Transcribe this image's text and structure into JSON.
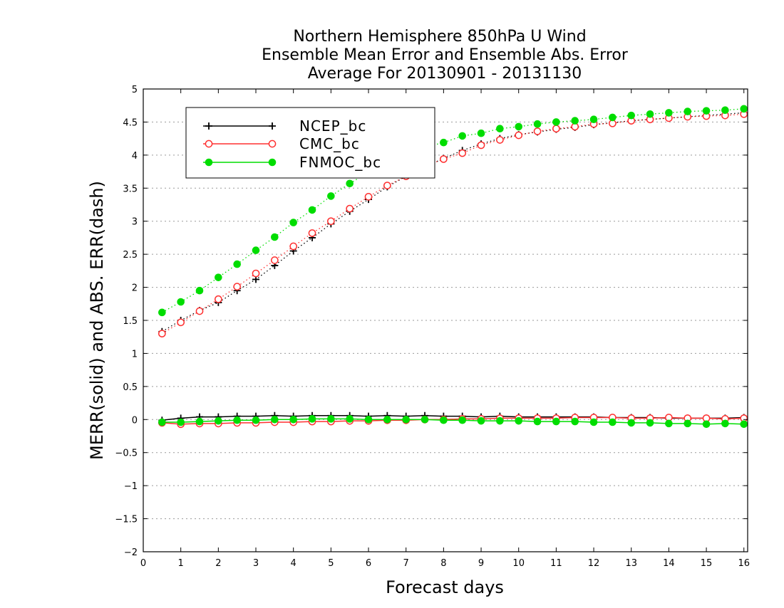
{
  "chart_data": {
    "type": "line",
    "title_lines": [
      "Northern Hemisphere 850hPa U Wind",
      "Ensemble Mean Error and Ensemble Abs. Error",
      "Average For 20130901 - 20131130"
    ],
    "xlabel": "Forecast days",
    "ylabel": "MERR(solid) and ABS. ERR(dash)",
    "xlim": [
      0,
      16.1
    ],
    "ylim": [
      -2,
      5
    ],
    "xticks": [
      0,
      1,
      2,
      3,
      4,
      5,
      6,
      7,
      8,
      9,
      10,
      11,
      12,
      13,
      14,
      15,
      16
    ],
    "yticks": [
      -2,
      -1.5,
      -1,
      -0.5,
      0,
      0.5,
      1,
      1.5,
      2,
      2.5,
      3,
      3.5,
      4,
      4.5,
      5
    ],
    "grid": "horizontal-dotted",
    "legend_position": "top-left",
    "x": [
      0.5,
      1,
      1.5,
      2,
      2.5,
      3,
      3.5,
      4,
      4.5,
      5,
      5.5,
      6,
      6.5,
      7,
      7.5,
      8,
      8.5,
      9,
      9.5,
      10,
      10.5,
      11,
      11.5,
      12,
      12.5,
      13,
      13.5,
      14,
      14.5,
      15,
      15.5,
      16
    ],
    "series": [
      {
        "name": "NCEP_bc",
        "color": "#000000",
        "marker": "plus",
        "merr": [
          -0.01,
          0.02,
          0.04,
          0.04,
          0.05,
          0.05,
          0.06,
          0.05,
          0.06,
          0.06,
          0.06,
          0.05,
          0.06,
          0.05,
          0.06,
          0.05,
          0.05,
          0.04,
          0.05,
          0.04,
          0.04,
          0.04,
          0.04,
          0.04,
          0.03,
          0.03,
          0.03,
          0.02,
          0.02,
          0.02,
          0.02,
          0.03
        ],
        "abs_err": [
          1.33,
          1.5,
          1.65,
          1.77,
          1.95,
          2.12,
          2.33,
          2.55,
          2.75,
          2.96,
          3.15,
          3.33,
          3.52,
          3.68,
          3.82,
          3.95,
          4.07,
          4.17,
          4.25,
          4.31,
          4.35,
          4.39,
          4.42,
          4.46,
          4.49,
          4.52,
          4.54,
          4.56,
          4.58,
          4.6,
          4.62,
          4.64
        ]
      },
      {
        "name": "CMC_bc",
        "color": "#ff3030",
        "marker": "open-circle",
        "merr": [
          -0.05,
          -0.07,
          -0.06,
          -0.06,
          -0.05,
          -0.05,
          -0.04,
          -0.04,
          -0.03,
          -0.03,
          -0.02,
          -0.02,
          -0.01,
          -0.01,
          0.0,
          0.0,
          0.01,
          0.01,
          0.02,
          0.02,
          0.02,
          0.02,
          0.03,
          0.03,
          0.03,
          0.02,
          0.02,
          0.03,
          0.02,
          0.02,
          0.01,
          0.02
        ],
        "abs_err": [
          1.3,
          1.47,
          1.64,
          1.82,
          2.01,
          2.21,
          2.41,
          2.62,
          2.82,
          3.0,
          3.19,
          3.37,
          3.54,
          3.68,
          3.83,
          3.94,
          4.03,
          4.15,
          4.23,
          4.3,
          4.36,
          4.4,
          4.43,
          4.47,
          4.48,
          4.52,
          4.54,
          4.56,
          4.58,
          4.59,
          4.6,
          4.62
        ]
      },
      {
        "name": "FNMOC_bc",
        "color": "#00dd00",
        "marker": "filled-circle",
        "merr": [
          -0.04,
          -0.04,
          -0.03,
          -0.02,
          -0.01,
          -0.01,
          0.0,
          0.0,
          0.01,
          0.01,
          0.01,
          0.0,
          0.0,
          0.0,
          0.0,
          -0.01,
          -0.01,
          -0.02,
          -0.02,
          -0.02,
          -0.03,
          -0.03,
          -0.03,
          -0.04,
          -0.04,
          -0.05,
          -0.05,
          -0.06,
          -0.06,
          -0.07,
          -0.06,
          -0.07
        ],
        "abs_err": [
          1.62,
          1.78,
          1.95,
          2.15,
          2.35,
          2.56,
          2.76,
          2.98,
          3.17,
          3.38,
          3.57,
          3.74,
          3.9,
          4.03,
          4.12,
          4.19,
          4.29,
          4.33,
          4.4,
          4.43,
          4.47,
          4.5,
          4.52,
          4.54,
          4.57,
          4.6,
          4.62,
          4.64,
          4.66,
          4.67,
          4.68,
          4.7
        ]
      }
    ]
  }
}
